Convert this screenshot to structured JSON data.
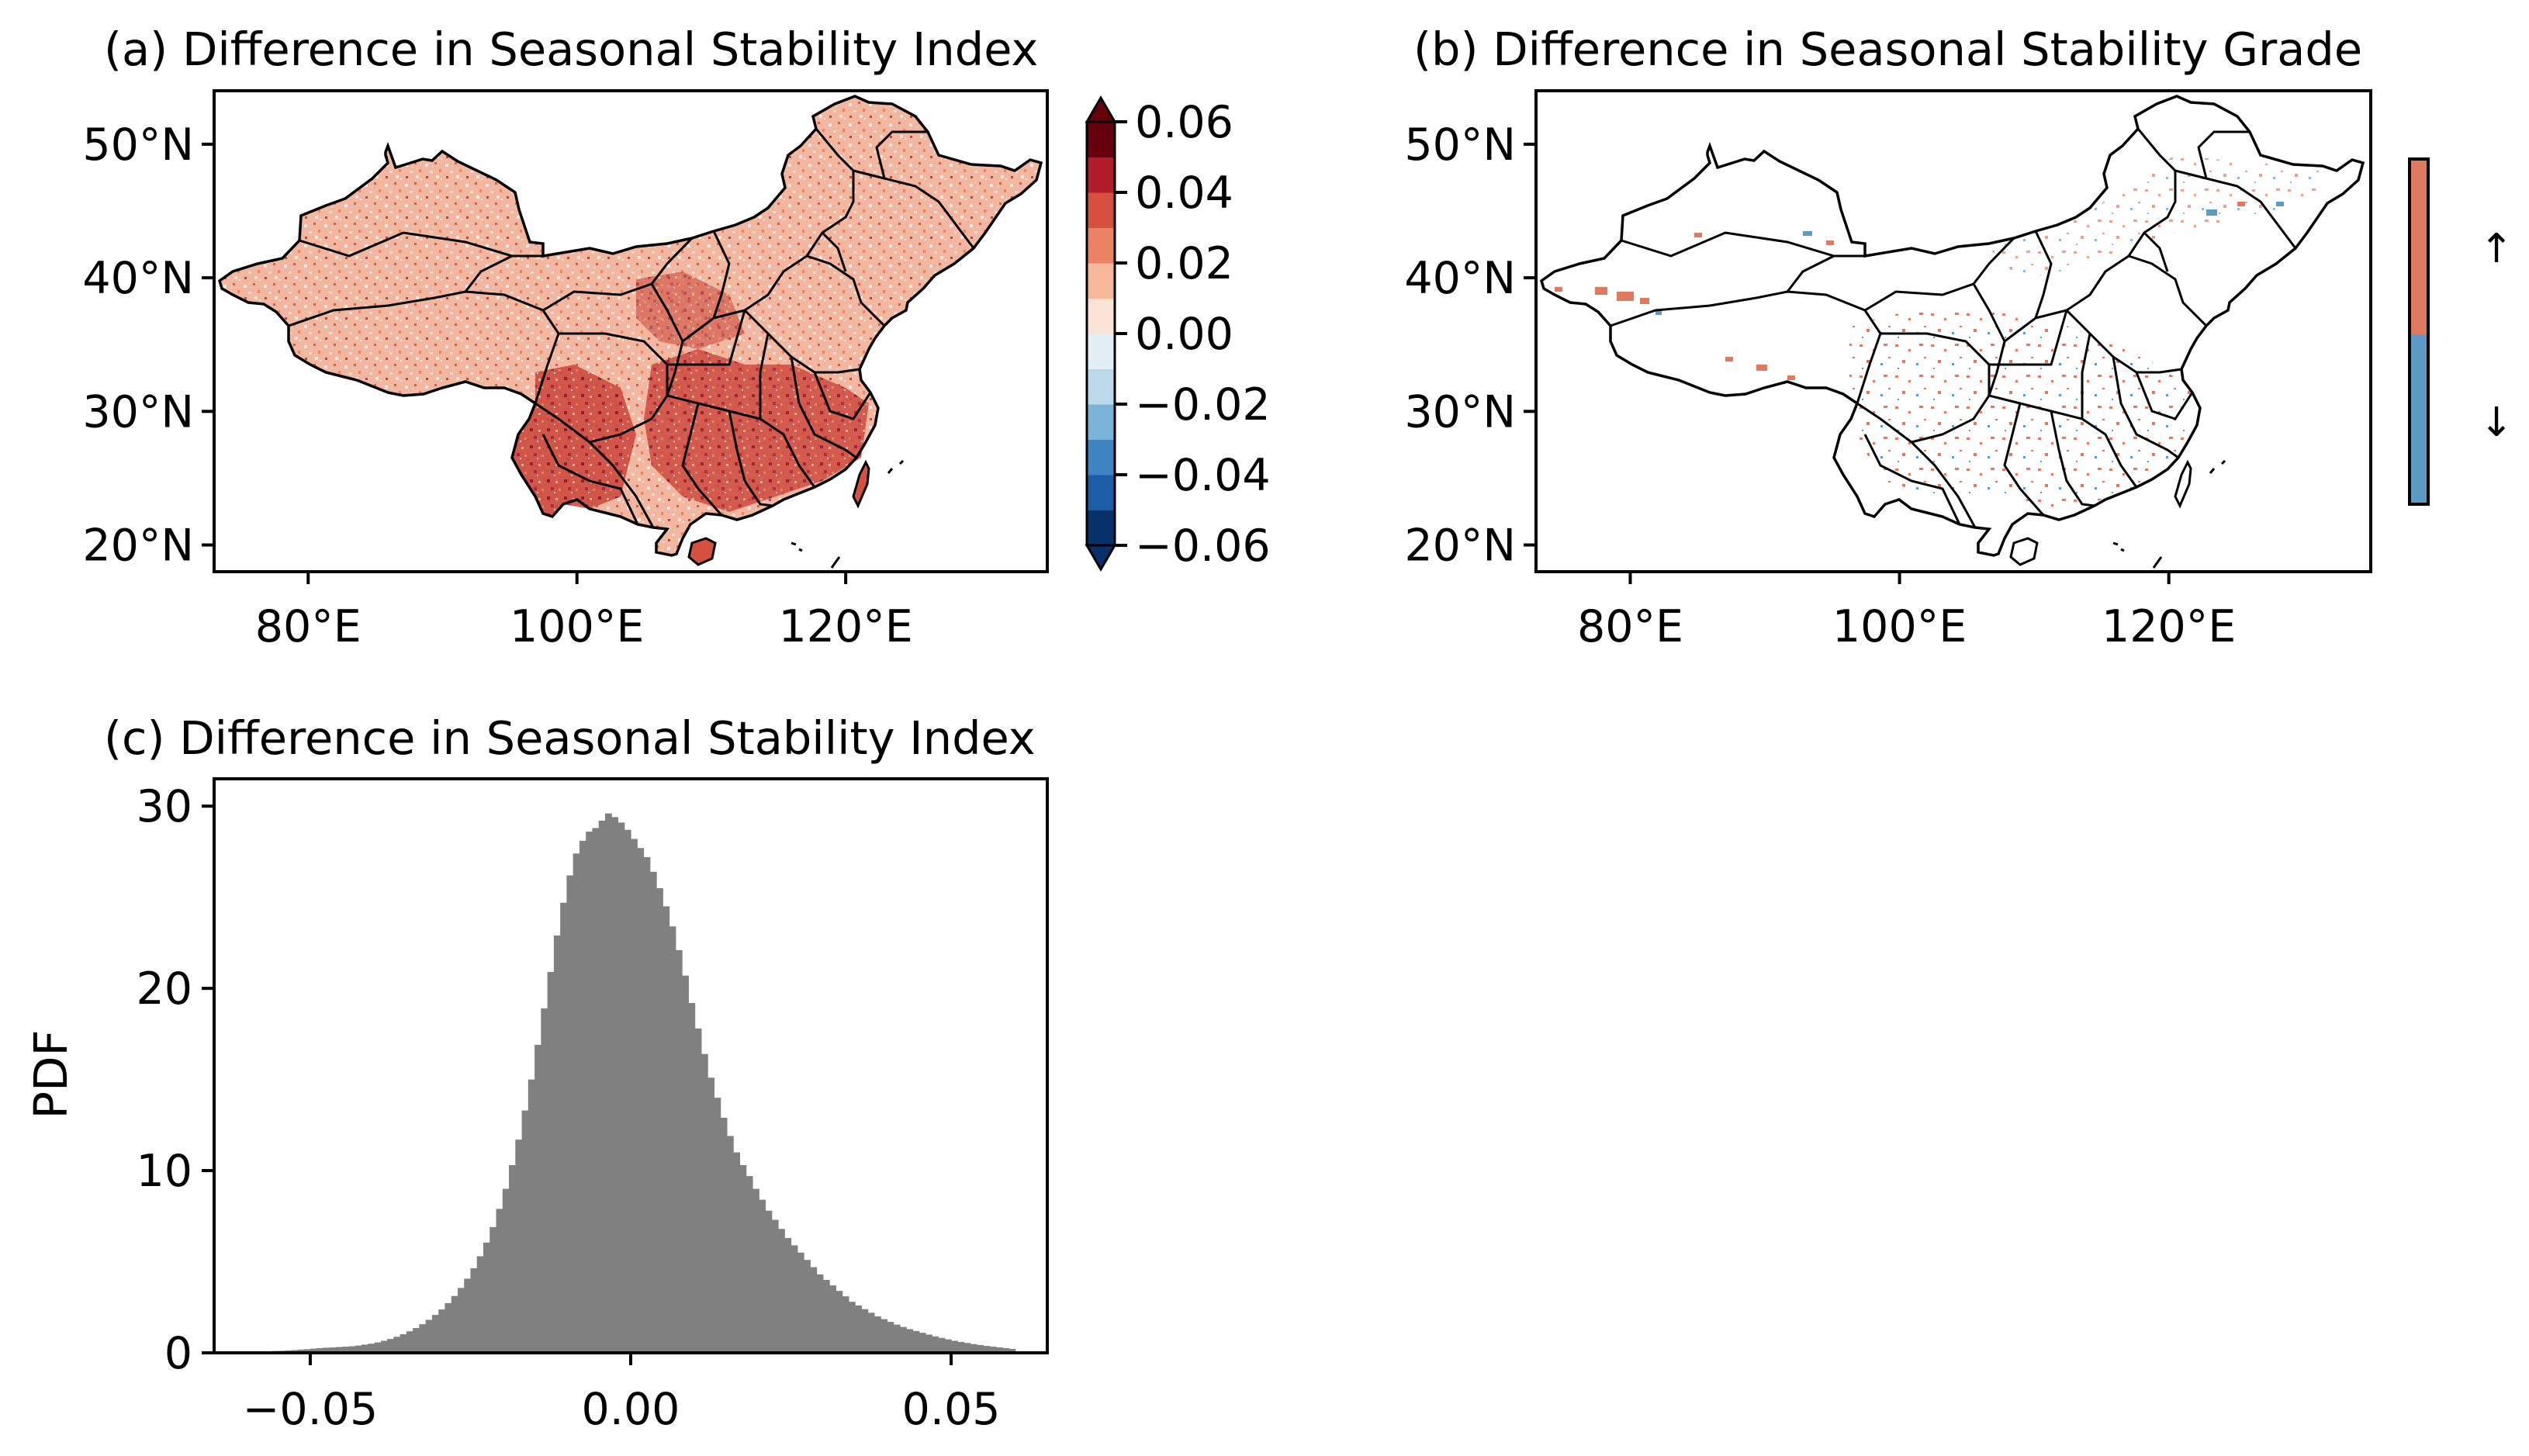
{
  "panel_a": {
    "title": "(a) Difference in Seasonal Stability Index",
    "lat_ticks": [
      "20°N",
      "30°N",
      "40°N",
      "50°N"
    ],
    "lon_ticks": [
      "80°E",
      "100°E",
      "120°E"
    ],
    "colorbar": {
      "tick_labels": [
        "0.06",
        "0.04",
        "0.02",
        "0.00",
        "−0.02",
        "−0.04",
        "−0.06"
      ],
      "colors": [
        "#08306b",
        "#1c5ea6",
        "#3f85c2",
        "#7bb4d9",
        "#bcd9ea",
        "#e3eef5",
        "#fbe3d6",
        "#f7b799",
        "#ec8264",
        "#d5503f",
        "#b11d2b",
        "#67000d"
      ]
    }
  },
  "panel_b": {
    "title": "(b) Difference in Seasonal Stability Grade",
    "lat_ticks": [
      "20°N",
      "30°N",
      "40°N",
      "50°N"
    ],
    "lon_ticks": [
      "80°E",
      "100°E",
      "120°E"
    ],
    "legend": {
      "up_label": "↑",
      "down_label": "↓",
      "up_color": "#e07a5f",
      "down_color": "#5b9bc6"
    }
  },
  "chart_data": {
    "type": "bar",
    "title": "(c) Difference in Seasonal Stability Index",
    "xlabel": "",
    "ylabel": "PDF",
    "xlim": [
      -0.065,
      0.065
    ],
    "ylim": [
      0,
      31.5
    ],
    "xticks": [
      -0.05,
      0.0,
      0.05
    ],
    "xtick_labels": [
      "−0.05",
      "0.00",
      "0.05"
    ],
    "yticks": [
      0,
      10,
      20,
      30
    ],
    "ytick_labels": [
      "0",
      "10",
      "20",
      "30"
    ],
    "bar_color": "#808080",
    "bin_width": 0.001,
    "x": [
      -0.06,
      -0.059,
      -0.058,
      -0.057,
      -0.056,
      -0.055,
      -0.054,
      -0.053,
      -0.052,
      -0.051,
      -0.05,
      -0.049,
      -0.048,
      -0.047,
      -0.046,
      -0.045,
      -0.044,
      -0.043,
      -0.042,
      -0.041,
      -0.04,
      -0.039,
      -0.038,
      -0.037,
      -0.036,
      -0.035,
      -0.034,
      -0.033,
      -0.032,
      -0.031,
      -0.03,
      -0.029,
      -0.028,
      -0.027,
      -0.026,
      -0.025,
      -0.024,
      -0.023,
      -0.022,
      -0.021,
      -0.02,
      -0.019,
      -0.018,
      -0.017,
      -0.016,
      -0.015,
      -0.014,
      -0.013,
      -0.012,
      -0.011,
      -0.01,
      -0.009,
      -0.008,
      -0.007,
      -0.006,
      -0.005,
      -0.004,
      -0.003,
      -0.002,
      -0.001,
      0.0,
      0.001,
      0.002,
      0.003,
      0.004,
      0.005,
      0.006,
      0.007,
      0.008,
      0.009,
      0.01,
      0.011,
      0.012,
      0.013,
      0.014,
      0.015,
      0.016,
      0.017,
      0.018,
      0.019,
      0.02,
      0.021,
      0.022,
      0.023,
      0.024,
      0.025,
      0.026,
      0.027,
      0.028,
      0.029,
      0.03,
      0.031,
      0.032,
      0.033,
      0.034,
      0.035,
      0.036,
      0.037,
      0.038,
      0.039,
      0.04,
      0.041,
      0.042,
      0.043,
      0.044,
      0.045,
      0.046,
      0.047,
      0.048,
      0.049,
      0.05,
      0.051,
      0.052,
      0.053,
      0.054,
      0.055,
      0.056,
      0.057,
      0.058,
      0.059
    ],
    "values": [
      0.05,
      0.06,
      0.07,
      0.08,
      0.1,
      0.11,
      0.13,
      0.15,
      0.18,
      0.2,
      0.23,
      0.26,
      0.28,
      0.3,
      0.32,
      0.34,
      0.36,
      0.4,
      0.45,
      0.5,
      0.57,
      0.66,
      0.76,
      0.88,
      1.02,
      1.18,
      1.36,
      1.57,
      1.81,
      2.08,
      2.38,
      2.73,
      3.12,
      3.56,
      4.07,
      4.64,
      5.3,
      6.05,
      6.9,
      7.9,
      9.0,
      10.3,
      11.7,
      13.3,
      15.0,
      16.9,
      18.9,
      20.9,
      22.9,
      24.7,
      26.2,
      27.4,
      28.1,
      28.6,
      28.8,
      29.2,
      29.6,
      29.4,
      29.1,
      28.7,
      28.2,
      27.7,
      27.2,
      26.4,
      25.5,
      24.5,
      23.4,
      22.1,
      20.7,
      19.2,
      17.8,
      16.4,
      15.1,
      14.0,
      12.9,
      11.9,
      11.0,
      10.3,
      9.7,
      9.0,
      8.4,
      7.8,
      7.3,
      6.8,
      6.3,
      5.9,
      5.5,
      5.1,
      4.7,
      4.3,
      4.0,
      3.7,
      3.4,
      3.1,
      2.8,
      2.6,
      2.4,
      2.2,
      2.0,
      1.85,
      1.7,
      1.55,
      1.42,
      1.3,
      1.2,
      1.1,
      1.0,
      0.9,
      0.82,
      0.74,
      0.66,
      0.6,
      0.54,
      0.48,
      0.43,
      0.38,
      0.34,
      0.3,
      0.26,
      0.22
    ]
  }
}
